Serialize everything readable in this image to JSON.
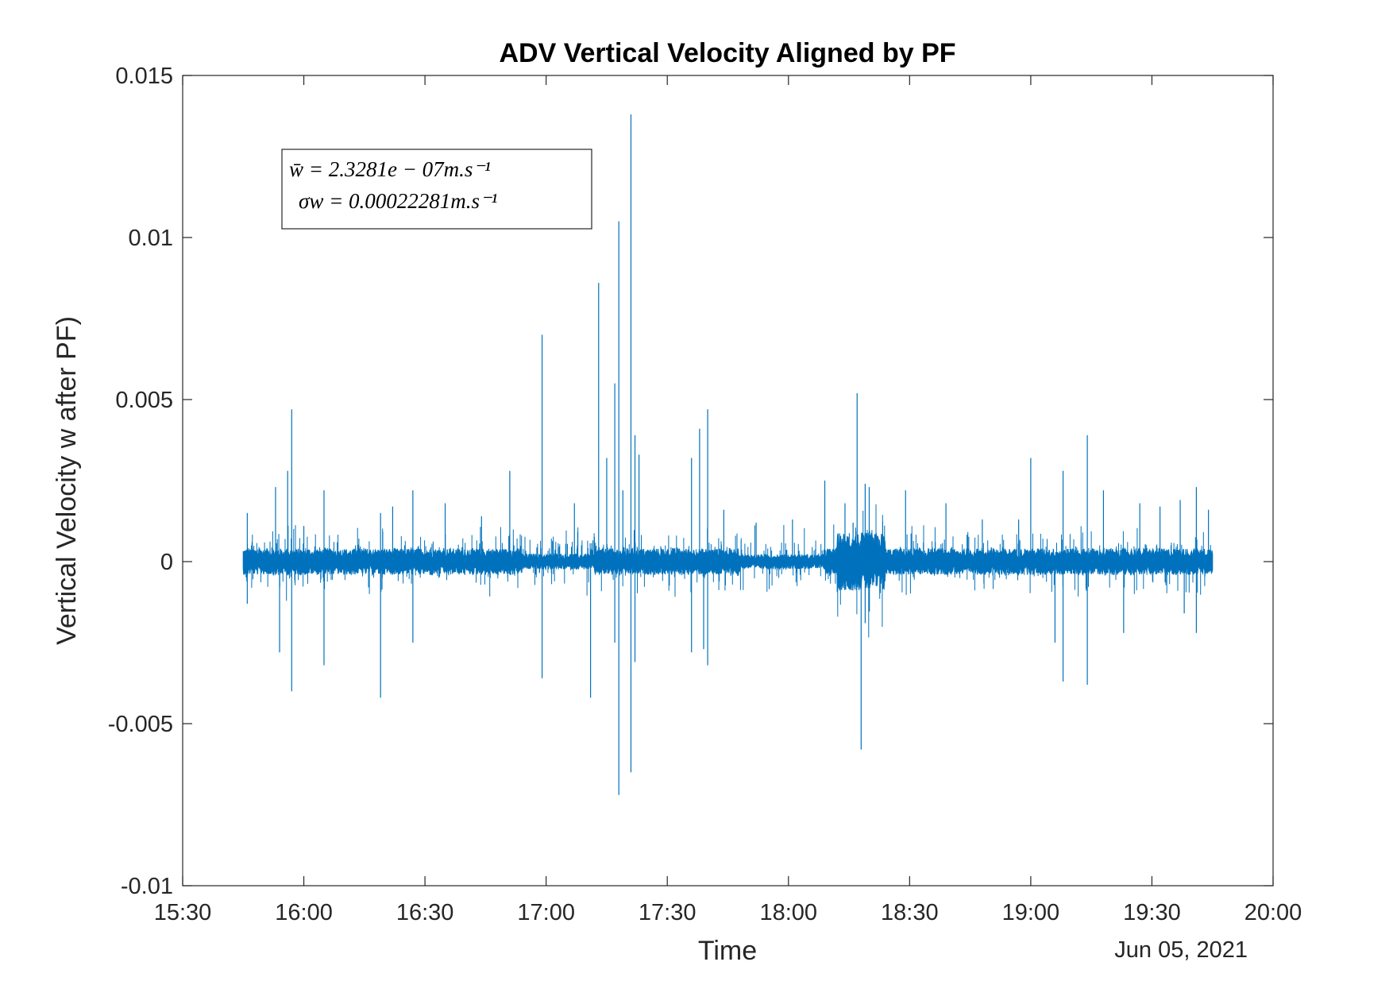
{
  "chart_data": {
    "type": "line",
    "title": "ADV Vertical Velocity Aligned by PF",
    "xlabel": "Time",
    "ylabel": "Vertical Velocity w after PF)",
    "date_label": "Jun 05, 2021",
    "xlim": [
      "15:30",
      "20:00"
    ],
    "ylim": [
      -0.01,
      0.015
    ],
    "xticks": [
      "15:30",
      "16:00",
      "16:30",
      "17:00",
      "17:30",
      "18:00",
      "18:30",
      "19:00",
      "19:30",
      "20:00"
    ],
    "yticks": [
      "-0.01",
      "-0.005",
      "0",
      "0.005",
      "0.01",
      "0.015"
    ],
    "grid": false,
    "series": [
      {
        "color": "#0072BD",
        "time_range": [
          "15:45",
          "19:45"
        ],
        "mean": 2.3281e-07,
        "std": 0.00022281,
        "spikes": [
          {
            "t": "15:46",
            "w": 0.0015
          },
          {
            "t": "15:46",
            "w": -0.0013
          },
          {
            "t": "15:53",
            "w": 0.0023
          },
          {
            "t": "15:54",
            "w": -0.0028
          },
          {
            "t": "15:56",
            "w": 0.0028
          },
          {
            "t": "15:57",
            "w": 0.0047
          },
          {
            "t": "15:57",
            "w": -0.004
          },
          {
            "t": "16:00",
            "w": 0.0011
          },
          {
            "t": "16:05",
            "w": 0.0022
          },
          {
            "t": "16:05",
            "w": -0.0032
          },
          {
            "t": "16:19",
            "w": -0.0042
          },
          {
            "t": "16:19",
            "w": 0.0015
          },
          {
            "t": "16:22",
            "w": 0.0017
          },
          {
            "t": "16:27",
            "w": 0.0022
          },
          {
            "t": "16:27",
            "w": -0.0025
          },
          {
            "t": "16:35",
            "w": 0.0018
          },
          {
            "t": "16:44",
            "w": 0.0014
          },
          {
            "t": "16:51",
            "w": 0.0028
          },
          {
            "t": "16:59",
            "w": 0.007
          },
          {
            "t": "16:59",
            "w": -0.0036
          },
          {
            "t": "17:07",
            "w": 0.0018
          },
          {
            "t": "17:11",
            "w": -0.0042
          },
          {
            "t": "17:13",
            "w": 0.0086
          },
          {
            "t": "17:15",
            "w": 0.0032
          },
          {
            "t": "17:17",
            "w": 0.0055
          },
          {
            "t": "17:17",
            "w": -0.0025
          },
          {
            "t": "17:18",
            "w": 0.0105
          },
          {
            "t": "17:18",
            "w": -0.0072
          },
          {
            "t": "17:19",
            "w": 0.0022
          },
          {
            "t": "17:21",
            "w": 0.0138
          },
          {
            "t": "17:21",
            "w": -0.0065
          },
          {
            "t": "17:22",
            "w": 0.0039
          },
          {
            "t": "17:22",
            "w": -0.0031
          },
          {
            "t": "17:23",
            "w": 0.0033
          },
          {
            "t": "17:36",
            "w": 0.0032
          },
          {
            "t": "17:36",
            "w": -0.0028
          },
          {
            "t": "17:38",
            "w": 0.0041
          },
          {
            "t": "17:39",
            "w": -0.0027
          },
          {
            "t": "17:40",
            "w": 0.0047
          },
          {
            "t": "17:40",
            "w": -0.0032
          },
          {
            "t": "17:44",
            "w": 0.0016
          },
          {
            "t": "17:52",
            "w": 0.0012
          },
          {
            "t": "18:01",
            "w": 0.0013
          },
          {
            "t": "18:09",
            "w": 0.0025
          },
          {
            "t": "18:14",
            "w": 0.0018
          },
          {
            "t": "18:16",
            "w": 0.0012
          },
          {
            "t": "18:17",
            "w": 0.0052
          },
          {
            "t": "18:18",
            "w": -0.0058
          },
          {
            "t": "18:19",
            "w": 0.0024
          },
          {
            "t": "18:19",
            "w": -0.0019
          },
          {
            "t": "18:20",
            "w": 0.0023
          },
          {
            "t": "18:29",
            "w": 0.0022
          },
          {
            "t": "18:39",
            "w": 0.0018
          },
          {
            "t": "18:48",
            "w": 0.0013
          },
          {
            "t": "18:57",
            "w": 0.0013
          },
          {
            "t": "19:00",
            "w": 0.0032
          },
          {
            "t": "19:06",
            "w": -0.0025
          },
          {
            "t": "19:08",
            "w": 0.0028
          },
          {
            "t": "19:08",
            "w": -0.0037
          },
          {
            "t": "19:14",
            "w": 0.0039
          },
          {
            "t": "19:14",
            "w": -0.0038
          },
          {
            "t": "19:18",
            "w": 0.0022
          },
          {
            "t": "19:23",
            "w": -0.0022
          },
          {
            "t": "19:27",
            "w": 0.0018
          },
          {
            "t": "19:32",
            "w": 0.0017
          },
          {
            "t": "19:37",
            "w": 0.0019
          },
          {
            "t": "19:38",
            "w": -0.0016
          },
          {
            "t": "19:41",
            "w": 0.0023
          },
          {
            "t": "19:41",
            "w": -0.0022
          },
          {
            "t": "19:44",
            "w": 0.0016
          }
        ]
      }
    ],
    "legend": {
      "lines": [
        "w̄ = 2.3281e − 07m.s⁻¹",
        "σw = 0.00022281m.s⁻¹"
      ],
      "location": "top-left"
    }
  }
}
